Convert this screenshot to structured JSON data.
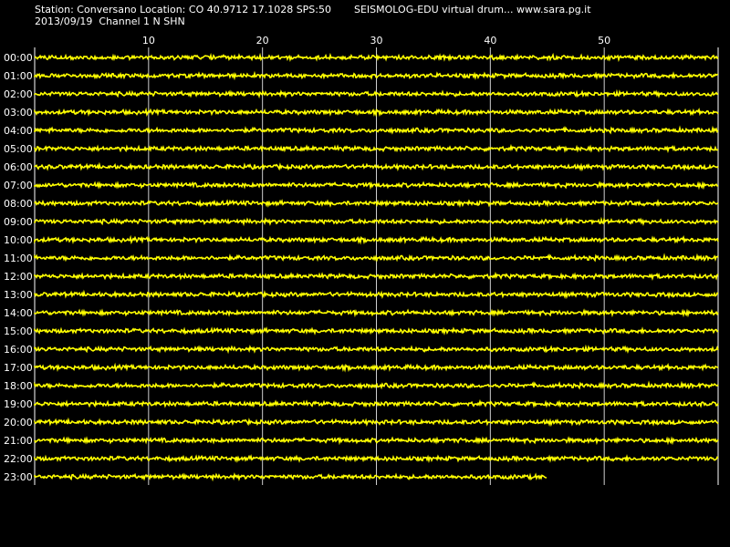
{
  "header": {
    "station_line": "Station: Conversano Location: CO 40.9712 17.1028 SPS:50",
    "date_line": "2013/09/19  Channel 1 N SHN",
    "app_line": "SEISMOLOG-EDU virtual drum... www.sara.pg.it"
  },
  "chart_data": {
    "type": "line",
    "x_ticks": [
      10,
      20,
      30,
      40,
      50
    ],
    "xlim": [
      0,
      60
    ],
    "rows": [
      "00:00",
      "01:00",
      "02:00",
      "03:00",
      "04:00",
      "05:00",
      "06:00",
      "07:00",
      "08:00",
      "09:00",
      "10:00",
      "11:00",
      "12:00",
      "13:00",
      "14:00",
      "15:00",
      "16:00",
      "17:00",
      "18:00",
      "19:00",
      "20:00",
      "21:00",
      "22:00",
      "23:00"
    ],
    "last_row_end_minute": 45,
    "grid": "vertical",
    "trace_color": "#ffff00",
    "grid_color": "#ffffff",
    "background": "#000000"
  }
}
